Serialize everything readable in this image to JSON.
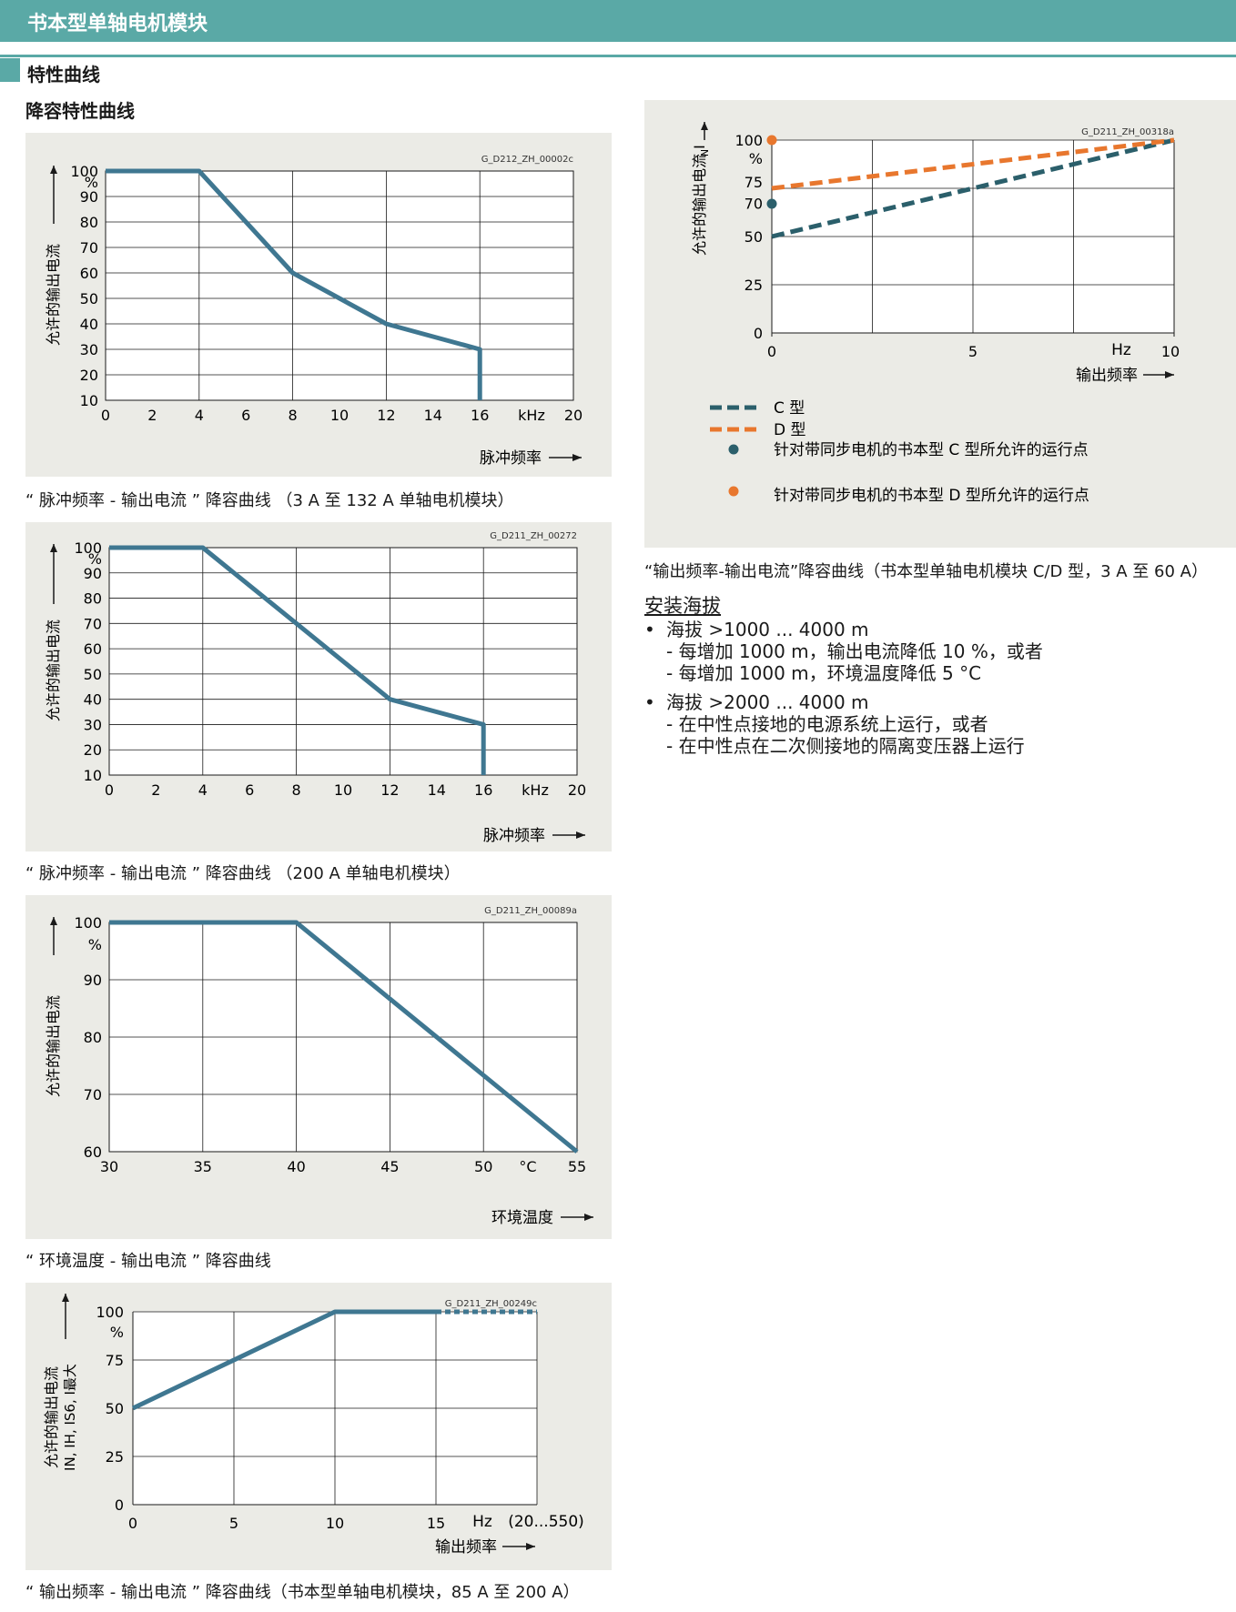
{
  "header": {
    "title": "书本型单轴电机模块"
  },
  "section": {
    "title": "特性曲线",
    "subtitle": "降容特性曲线"
  },
  "charts": {
    "c1": {
      "id": "G_D212_ZH_00002c",
      "ylabel": "允许的输出电流",
      "xlabel": "脉冲频率",
      "yunit": "%",
      "xunit": "kHz",
      "yticks": [
        "10",
        "20",
        "30",
        "40",
        "50",
        "60",
        "70",
        "80",
        "90",
        "100"
      ],
      "xticks": [
        "0",
        "2",
        "4",
        "6",
        "8",
        "10",
        "12",
        "14",
        "16",
        "20"
      ],
      "caption": "“ 脉冲频率 - 输出电流 ” 降容曲线 （3 A 至 132 A 单轴电机模块）"
    },
    "c2": {
      "id": "G_D211_ZH_00272",
      "ylabel": "允许的输出电流",
      "xlabel": "脉冲频率",
      "yunit": "%",
      "xunit": "kHz",
      "yticks": [
        "10",
        "20",
        "30",
        "40",
        "50",
        "60",
        "70",
        "80",
        "90",
        "100"
      ],
      "xticks": [
        "0",
        "2",
        "4",
        "6",
        "8",
        "10",
        "12",
        "14",
        "16",
        "20"
      ],
      "caption": "“ 脉冲频率 - 输出电流 ” 降容曲线 （200 A 单轴电机模块）"
    },
    "c3": {
      "id": "G_D211_ZH_00089a",
      "ylabel": "允许的输出电流",
      "xlabel": "环境温度",
      "yunit": "%",
      "xunit": "°C",
      "yticks": [
        "60",
        "70",
        "80",
        "90",
        "100"
      ],
      "xticks": [
        "30",
        "35",
        "40",
        "45",
        "50",
        "55"
      ],
      "caption": "“ 环境温度 - 输出电流 ” 降容曲线"
    },
    "c4": {
      "id": "G_D211_ZH_00249c",
      "ylabel": "允许的输出电流",
      "ylabel2": "IN, IH, IS6, I最大",
      "xlabel": "输出频率",
      "yunit": "%",
      "xunit": "Hz",
      "xextra": "(20...550)",
      "yticks": [
        "0",
        "25",
        "50",
        "75",
        "100"
      ],
      "xticks": [
        "0",
        "5",
        "10",
        "15"
      ],
      "caption": "“ 输出频率 - 输出电流 ” 降容曲线（书本型单轴电机模块，85 A 至 200 A）"
    },
    "c5": {
      "id": "G_D211_ZH_00318a",
      "ylabel": "允许的输出电流 I",
      "ysub": "N",
      "xlabel": "输出频率",
      "yunit": "%",
      "xunit": "Hz",
      "yticks": [
        "0",
        "25",
        "50",
        "70",
        "75",
        "100"
      ],
      "xticks": [
        "0",
        "5",
        "10"
      ],
      "legend": {
        "c": "C 型",
        "d": "D 型",
        "pc": "针对带同步电机的书本型 C 型所允许的运行点",
        "pd": "针对带同步电机的书本型 D 型所允许的运行点"
      },
      "caption": "“输出频率-输出电流”降容曲线（书本型单轴电机模块 C/D 型，3 A 至 60 A）"
    }
  },
  "chart_data": [
    {
      "type": "line",
      "x": [
        0,
        4,
        8,
        12,
        16,
        16
      ],
      "y": [
        100,
        100,
        60,
        40,
        30,
        10
      ],
      "xlim": [
        0,
        20
      ],
      "ylim": [
        10,
        100
      ],
      "xlabel": "脉冲频率",
      "ylabel": "允许的输出电流"
    },
    {
      "type": "line",
      "x": [
        0,
        4,
        8,
        12,
        16,
        16
      ],
      "y": [
        100,
        100,
        70,
        40,
        30,
        10
      ],
      "xlim": [
        0,
        20
      ],
      "ylim": [
        10,
        100
      ],
      "xlabel": "脉冲频率",
      "ylabel": "允许的输出电流"
    },
    {
      "type": "line",
      "x": [
        30,
        40,
        55
      ],
      "y": [
        100,
        100,
        60
      ],
      "xlim": [
        30,
        55
      ],
      "ylim": [
        60,
        100
      ],
      "xlabel": "环境温度",
      "ylabel": "允许的输出电流"
    },
    {
      "type": "line",
      "x": [
        0,
        10,
        15,
        20
      ],
      "y": [
        50,
        100,
        100,
        100
      ],
      "xlim": [
        0,
        20
      ],
      "ylim": [
        0,
        100
      ],
      "xlabel": "输出频率",
      "ylabel": "允许的输出电流"
    },
    {
      "type": "line",
      "xlim": [
        0,
        10
      ],
      "ylim": [
        0,
        100
      ],
      "xlabel": "输出频率",
      "ylabel": "允许的输出电流 IN",
      "series": [
        {
          "name": "C 型",
          "x": [
            0,
            10
          ],
          "y": [
            50,
            100
          ],
          "color": "#2b5f6b"
        },
        {
          "name": "D 型",
          "x": [
            0,
            10
          ],
          "y": [
            75,
            100
          ],
          "color": "#e8772e"
        }
      ],
      "points": [
        {
          "name": "针对带同步电机的书本型 C 型所允许的运行点",
          "x": 0,
          "y": 67,
          "color": "#2b5f6b"
        },
        {
          "name": "针对带同步电机的书本型 D 型所允许的运行点",
          "x": 0,
          "y": 100,
          "color": "#e8772e"
        }
      ]
    }
  ],
  "altitude": {
    "title": "安装海拔",
    "items": [
      {
        "bullet": "•",
        "main": "海拔 >1000 ... 4000 m",
        "subs": [
          "- 每增加 1000 m，输出电流降低 10 %，或者",
          "- 每增加 1000 m，环境温度降低 5 °C"
        ]
      },
      {
        "bullet": "•",
        "main": "海拔 >2000 ... 4000 m",
        "subs": [
          "- 在中性点接地的电源系统上运行，或者",
          "- 在中性点在二次侧接地的隔离变压器上运行"
        ]
      }
    ]
  },
  "colors": {
    "accent": "#5aa9a6",
    "line": "#3f7791",
    "c_type": "#2b5f6b",
    "d_type": "#e8772e",
    "panel": "#ebebe6"
  }
}
